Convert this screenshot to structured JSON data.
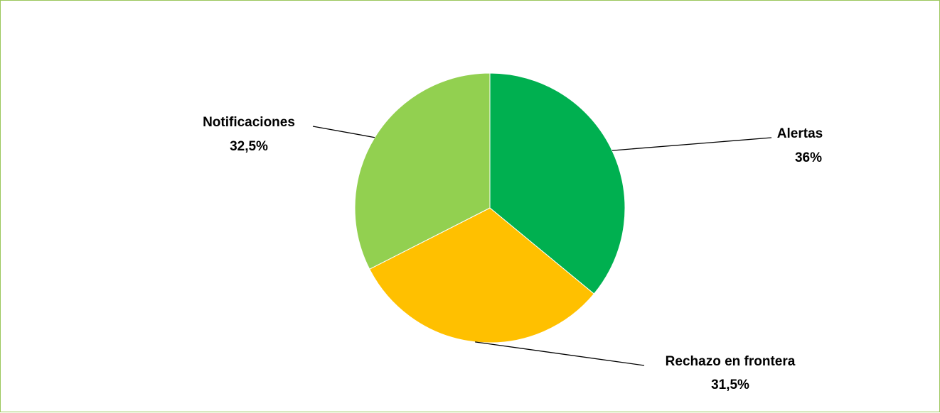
{
  "chart_data": {
    "type": "pie",
    "title": "",
    "slices": [
      {
        "label": "Alertas",
        "value": 36,
        "value_label": "36%",
        "color": "#00b050"
      },
      {
        "label": "Rechazo en frontera",
        "value": 31.5,
        "value_label": "31,5%",
        "color": "#ffc000"
      },
      {
        "label": "Notificaciones",
        "value": 32.5,
        "value_label": "32,5%",
        "color": "#92d050"
      }
    ],
    "start_angle_deg": 0,
    "direction": "clockwise",
    "legend": "none",
    "frame_border_color": "#9bc65b"
  }
}
